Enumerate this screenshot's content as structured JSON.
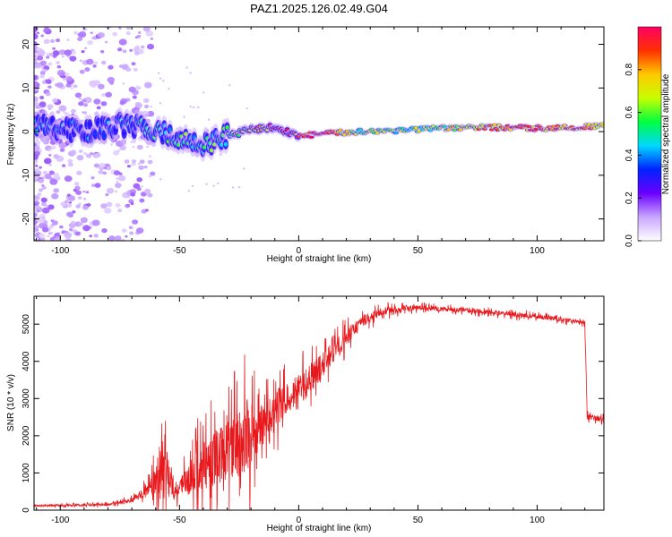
{
  "title": "PAZ1.2025.126.02.49.G04",
  "colors": {
    "snr_line": "#e8191d",
    "axis": "#000000",
    "background": "#ffffff"
  },
  "chart_data": [
    {
      "type": "heatmap",
      "name": "spectrogram",
      "xlabel": "Height of straight line (km)",
      "ylabel": "Frequency (Hz)",
      "xlim": [
        -111,
        128
      ],
      "ylim": [
        -25,
        24
      ],
      "xticks": [
        -100,
        -50,
        0,
        50,
        100
      ],
      "yticks": [
        -20,
        -10,
        0,
        10,
        20
      ],
      "colorbar": {
        "label": "Normalized spectral amplitude",
        "range": [
          0,
          1
        ],
        "ticks": [
          "0.0",
          "0.2",
          "0.4",
          "0.6",
          "0.8"
        ],
        "tick_values": [
          0,
          0.2,
          0.4,
          0.6,
          0.8
        ],
        "colormap": [
          "#ffffff",
          "#c8a6ff",
          "#6a00ff",
          "#0022ff",
          "#00d8ff",
          "#00ff40",
          "#c8ff00",
          "#ffc800",
          "#ff3000",
          "#ff0064"
        ]
      },
      "ridge": [
        {
          "x": -110,
          "f": 1.5,
          "a": 0.35
        },
        {
          "x": -90,
          "f": 0.0,
          "a": 0.3
        },
        {
          "x": -75,
          "f": 1.5,
          "a": 0.35
        },
        {
          "x": -60,
          "f": 0.5,
          "a": 0.45
        },
        {
          "x": -50,
          "f": -2.0,
          "a": 0.5
        },
        {
          "x": -40,
          "f": -3.0,
          "a": 0.45
        },
        {
          "x": -30,
          "f": -1.0,
          "a": 0.55
        },
        {
          "x": -20,
          "f": 0.5,
          "a": 0.75
        },
        {
          "x": -10,
          "f": 1.0,
          "a": 0.85
        },
        {
          "x": 0,
          "f": -1.0,
          "a": 0.95
        },
        {
          "x": 10,
          "f": -0.5,
          "a": 0.9
        },
        {
          "x": 25,
          "f": 0.0,
          "a": 0.6
        },
        {
          "x": 50,
          "f": 0.5,
          "a": 0.55
        },
        {
          "x": 75,
          "f": 1.0,
          "a": 0.75
        },
        {
          "x": 100,
          "f": 0.8,
          "a": 0.85
        },
        {
          "x": 127,
          "f": 1.2,
          "a": 0.8
        }
      ]
    },
    {
      "type": "line",
      "name": "snr",
      "xlabel": "Height of straight line (km)",
      "ylabel": "SNR (10 * v/v)",
      "xlim": [
        -111,
        128
      ],
      "ylim": [
        0,
        5750
      ],
      "xticks": [
        -100,
        -50,
        0,
        50,
        100
      ],
      "yticks": [
        0,
        1000,
        2000,
        3000,
        4000,
        5000
      ],
      "envelope": [
        {
          "x": -111,
          "base": 120,
          "amp": 60
        },
        {
          "x": -80,
          "base": 150,
          "amp": 80
        },
        {
          "x": -70,
          "base": 250,
          "amp": 150
        },
        {
          "x": -62,
          "base": 600,
          "amp": 500
        },
        {
          "x": -57,
          "base": 1200,
          "amp": 2200
        },
        {
          "x": -52,
          "base": 500,
          "amp": 400
        },
        {
          "x": -45,
          "base": 900,
          "amp": 1200
        },
        {
          "x": -38,
          "base": 1300,
          "amp": 1800
        },
        {
          "x": -30,
          "base": 1600,
          "amp": 1900
        },
        {
          "x": -23,
          "base": 1900,
          "amp": 2500
        },
        {
          "x": -15,
          "base": 2300,
          "amp": 1300
        },
        {
          "x": -5,
          "base": 3000,
          "amp": 1100
        },
        {
          "x": 5,
          "base": 3500,
          "amp": 1000
        },
        {
          "x": 15,
          "base": 4300,
          "amp": 700
        },
        {
          "x": 25,
          "base": 5000,
          "amp": 400
        },
        {
          "x": 35,
          "base": 5350,
          "amp": 250
        },
        {
          "x": 50,
          "base": 5450,
          "amp": 150
        },
        {
          "x": 75,
          "base": 5350,
          "amp": 150
        },
        {
          "x": 100,
          "base": 5200,
          "amp": 150
        },
        {
          "x": 120,
          "base": 5050,
          "amp": 120
        },
        {
          "x": 121,
          "base": 2500,
          "amp": 200
        },
        {
          "x": 128,
          "base": 2450,
          "amp": 150
        }
      ]
    }
  ]
}
